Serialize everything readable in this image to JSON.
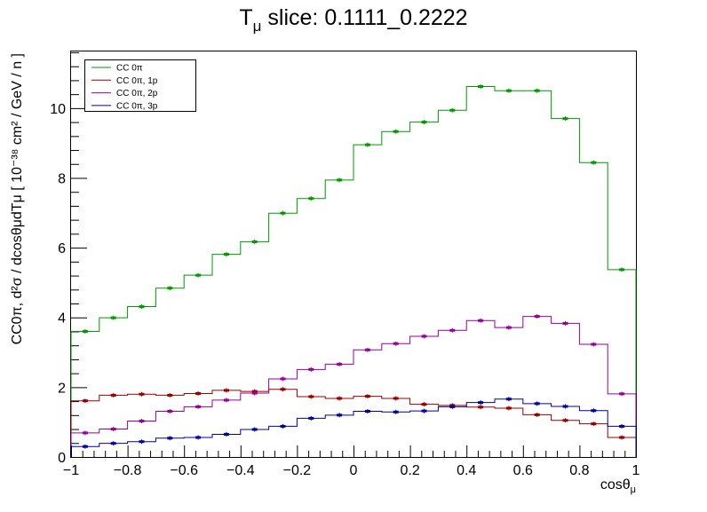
{
  "chart_data": {
    "type": "line",
    "title": {
      "main": "T",
      "sub": "μ",
      "rest": " slice: 0.1111_0.2222"
    },
    "xlabel": {
      "main": "cosθ",
      "sub": "μ"
    },
    "ylabel": "CC0π, d²σ / dcosθμdTμ [ 10⁻³⁸ cm² / GeV / n ]",
    "xlim": [
      -1,
      1
    ],
    "ylim": [
      0,
      11.65
    ],
    "x_ticks": [
      -1,
      -0.8,
      -0.6,
      -0.4,
      -0.2,
      0,
      0.2,
      0.4,
      0.6,
      0.8,
      1
    ],
    "x_tick_labels": [
      "−1",
      "−0.8",
      "−0.6",
      "−0.4",
      "−0.2",
      "0",
      "0.2",
      "0.4",
      "0.6",
      "0.8",
      "1"
    ],
    "y_ticks": [
      0,
      2,
      4,
      6,
      8,
      10
    ],
    "y_tick_labels": [
      "0",
      "2",
      "4",
      "6",
      "8",
      "10"
    ],
    "bin_edges": [
      -1,
      -0.9,
      -0.8,
      -0.7,
      -0.6,
      -0.5,
      -0.4,
      -0.3,
      -0.2,
      -0.1,
      0,
      0.1,
      0.2,
      0.3,
      0.4,
      0.5,
      0.6,
      0.7,
      0.8,
      0.9,
      1
    ],
    "legend_position": "top-left",
    "grid": false,
    "series": [
      {
        "name": "CC 0π",
        "color": "#009900",
        "values": [
          3.6,
          3.99,
          4.31,
          4.84,
          5.21,
          5.81,
          6.17,
          6.99,
          7.41,
          7.94,
          8.95,
          9.33,
          9.6,
          9.94,
          10.62,
          10.5,
          10.5,
          9.7,
          8.44,
          5.37
        ]
      },
      {
        "name": "CC 0π, 1p",
        "color": "#990000",
        "values": [
          1.61,
          1.77,
          1.8,
          1.77,
          1.82,
          1.91,
          1.88,
          1.94,
          1.73,
          1.68,
          1.74,
          1.68,
          1.51,
          1.48,
          1.43,
          1.4,
          1.21,
          1.05,
          0.95,
          0.56
        ]
      },
      {
        "name": "CC 0π, 2p",
        "color": "#990099",
        "values": [
          0.69,
          0.8,
          1.03,
          1.31,
          1.44,
          1.63,
          1.83,
          2.24,
          2.51,
          2.66,
          3.07,
          3.25,
          3.46,
          3.63,
          3.91,
          3.71,
          4.03,
          3.83,
          3.23,
          1.81
        ]
      },
      {
        "name": "CC 0π, 3p",
        "color": "#000099",
        "values": [
          0.3,
          0.39,
          0.44,
          0.54,
          0.56,
          0.65,
          0.79,
          0.88,
          1.11,
          1.2,
          1.31,
          1.29,
          1.32,
          1.44,
          1.56,
          1.66,
          1.53,
          1.45,
          1.33,
          0.88
        ]
      }
    ]
  }
}
